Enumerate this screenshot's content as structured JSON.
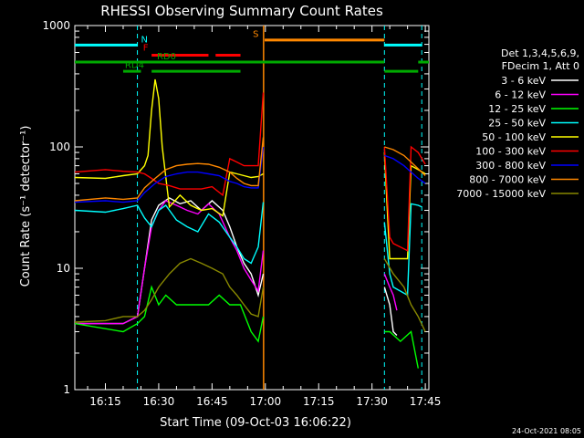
{
  "chart_data": {
    "type": "line",
    "title": "RHESSI Observing Summary Count Rates",
    "xlabel": "Start Time (09-Oct-03 16:06:22)",
    "ylabel": "Count Rate (s⁻¹ detector⁻¹)",
    "y_scale": "log",
    "ylim": [
      1,
      1000
    ],
    "xlim_minutes": [
      6.4,
      106
    ],
    "xticks": [
      {
        "m": 15,
        "label": "16:15"
      },
      {
        "m": 30,
        "label": "16:30"
      },
      {
        "m": 45,
        "label": "16:45"
      },
      {
        "m": 60,
        "label": "17:00"
      },
      {
        "m": 75,
        "label": "17:15"
      },
      {
        "m": 90,
        "label": "17:30"
      },
      {
        "m": 105,
        "label": "17:45"
      }
    ],
    "yticks": [
      {
        "v": 1,
        "label": "1"
      },
      {
        "v": 10,
        "label": "10"
      },
      {
        "v": 100,
        "label": "100"
      },
      {
        "v": 1000,
        "label": "1000"
      }
    ],
    "legend_header": [
      "Det 1,3,4,5,6,9,",
      "FDecim 1, Att 0"
    ],
    "legend_position": "right",
    "timestamp": "24-Oct-2021 08:05",
    "gaps": [
      [
        59.5,
        93.5
      ]
    ],
    "saa_cutoff": 59.8,
    "vlines_dashed": [
      24,
      93.5,
      104
    ],
    "vline_solid": 59.5,
    "flag_bars": [
      {
        "label": "N",
        "color": "#00ffff",
        "level": 690,
        "segments": [
          [
            6.4,
            24
          ],
          [
            93.5,
            104
          ]
        ],
        "label_m": 25,
        "label_v": 700
      },
      {
        "label": "F",
        "color": "#ff0000",
        "level": 570,
        "segments": [
          [
            28,
            44
          ],
          [
            46,
            53
          ]
        ],
        "label_m": 25.6,
        "label_v": 600
      },
      {
        "label": "S",
        "color": "#ff8800",
        "level": 760,
        "segments": [
          [
            59.8,
            93.5
          ]
        ],
        "label_m": 56.5,
        "label_v": 780
      },
      {
        "label": "RD0",
        "color": "#00aa00",
        "level": 500,
        "segments": [
          [
            6.4,
            93.5
          ],
          [
            103,
            106
          ]
        ],
        "label_m": 29.5,
        "label_v": 510
      },
      {
        "label": "RD4",
        "color": "#00aa00",
        "level": 420,
        "segments": [
          [
            20,
            25
          ],
          [
            28,
            53
          ],
          [
            93.5,
            103
          ]
        ],
        "label_m": 20.5,
        "label_v": 430
      }
    ],
    "series": [
      {
        "name": "3 - 6 keV",
        "color": "#ffffff",
        "pts": [
          [
            6.4,
            3.5
          ],
          [
            20,
            3.5
          ],
          [
            24,
            4
          ],
          [
            26,
            10
          ],
          [
            28,
            25
          ],
          [
            30,
            33
          ],
          [
            33,
            38
          ],
          [
            36,
            34
          ],
          [
            39,
            36
          ],
          [
            42,
            30
          ],
          [
            45,
            36
          ],
          [
            48,
            30
          ],
          [
            50,
            22
          ],
          [
            52,
            15
          ],
          [
            54,
            11
          ],
          [
            56,
            9
          ],
          [
            58,
            6
          ],
          [
            59.4,
            9
          ],
          [
            null,
            null
          ],
          [
            93.5,
            7
          ],
          [
            95,
            5
          ],
          [
            96,
            3
          ],
          [
            97,
            2.8
          ]
        ]
      },
      {
        "name": "6 - 12 keV",
        "color": "#ff00ff",
        "pts": [
          [
            6.4,
            3.5
          ],
          [
            20,
            3.5
          ],
          [
            24,
            4
          ],
          [
            26,
            10
          ],
          [
            28,
            22
          ],
          [
            30,
            30
          ],
          [
            32,
            36
          ],
          [
            35,
            33
          ],
          [
            38,
            30
          ],
          [
            41,
            28
          ],
          [
            44,
            34
          ],
          [
            47,
            28
          ],
          [
            50,
            18
          ],
          [
            52,
            14
          ],
          [
            54,
            10
          ],
          [
            56,
            8
          ],
          [
            58,
            6.5
          ],
          [
            59.4,
            14
          ],
          [
            null,
            null
          ],
          [
            93.5,
            9
          ],
          [
            95,
            7
          ],
          [
            96,
            6
          ],
          [
            97,
            4.5
          ]
        ]
      },
      {
        "name": "12 - 25 keV",
        "color": "#00ff00",
        "pts": [
          [
            6.4,
            3.5
          ],
          [
            20,
            3
          ],
          [
            24,
            3.5
          ],
          [
            26,
            4
          ],
          [
            28,
            7
          ],
          [
            30,
            5
          ],
          [
            32,
            6
          ],
          [
            35,
            5
          ],
          [
            38,
            5
          ],
          [
            41,
            5
          ],
          [
            44,
            5
          ],
          [
            47,
            6
          ],
          [
            50,
            5
          ],
          [
            53,
            5
          ],
          [
            56,
            3
          ],
          [
            58,
            2.5
          ],
          [
            59.4,
            4
          ],
          [
            null,
            null
          ],
          [
            93.5,
            3
          ],
          [
            95,
            3
          ],
          [
            98,
            2.5
          ],
          [
            101,
            3
          ],
          [
            103,
            1.5
          ]
        ]
      },
      {
        "name": "25 - 50 keV",
        "color": "#00ffff",
        "pts": [
          [
            6.4,
            30
          ],
          [
            15,
            29
          ],
          [
            20,
            31
          ],
          [
            24,
            33
          ],
          [
            26,
            26
          ],
          [
            28,
            22
          ],
          [
            30,
            30
          ],
          [
            32,
            33
          ],
          [
            35,
            25
          ],
          [
            38,
            22
          ],
          [
            41,
            20
          ],
          [
            44,
            28
          ],
          [
            47,
            24
          ],
          [
            50,
            18
          ],
          [
            52,
            15
          ],
          [
            54,
            12
          ],
          [
            56,
            11
          ],
          [
            58,
            15
          ],
          [
            59.4,
            35
          ],
          [
            null,
            null
          ],
          [
            93.5,
            24
          ],
          [
            95,
            9
          ],
          [
            96,
            7
          ],
          [
            100,
            6
          ],
          [
            101,
            34
          ],
          [
            103,
            33
          ],
          [
            104,
            32
          ]
        ]
      },
      {
        "name": "50 - 100 keV",
        "color": "#ffff00",
        "pts": [
          [
            6.4,
            56
          ],
          [
            15,
            55
          ],
          [
            20,
            58
          ],
          [
            24,
            60
          ],
          [
            26,
            70
          ],
          [
            27,
            85
          ],
          [
            28,
            200
          ],
          [
            29,
            360
          ],
          [
            30,
            250
          ],
          [
            31,
            100
          ],
          [
            33,
            32
          ],
          [
            36,
            40
          ],
          [
            39,
            33
          ],
          [
            42,
            30
          ],
          [
            45,
            31
          ],
          [
            48,
            27
          ],
          [
            50,
            62
          ],
          [
            52,
            60
          ],
          [
            54,
            58
          ],
          [
            56,
            56
          ],
          [
            58,
            57
          ],
          [
            59.4,
            60
          ],
          [
            null,
            null
          ],
          [
            93.5,
            90
          ],
          [
            95,
            12
          ],
          [
            96,
            12
          ],
          [
            100,
            12
          ],
          [
            101,
            70
          ],
          [
            103,
            65
          ],
          [
            105,
            60
          ]
        ]
      },
      {
        "name": "100 - 300 keV",
        "color": "#ff0000",
        "pts": [
          [
            6.4,
            62
          ],
          [
            15,
            65
          ],
          [
            20,
            63
          ],
          [
            24,
            62
          ],
          [
            26,
            60
          ],
          [
            28,
            55
          ],
          [
            30,
            50
          ],
          [
            33,
            48
          ],
          [
            36,
            45
          ],
          [
            39,
            45
          ],
          [
            42,
            45
          ],
          [
            45,
            47
          ],
          [
            48,
            40
          ],
          [
            50,
            80
          ],
          [
            52,
            75
          ],
          [
            54,
            70
          ],
          [
            56,
            70
          ],
          [
            58,
            70
          ],
          [
            59.4,
            280
          ],
          [
            null,
            null
          ],
          [
            93.5,
            100
          ],
          [
            95,
            18
          ],
          [
            96,
            16
          ],
          [
            100,
            14
          ],
          [
            101,
            100
          ],
          [
            103,
            90
          ],
          [
            105,
            72
          ]
        ]
      },
      {
        "name": "300 - 800 keV",
        "color": "#0000ff",
        "pts": [
          [
            6.4,
            35
          ],
          [
            15,
            36
          ],
          [
            20,
            35
          ],
          [
            24,
            36
          ],
          [
            26,
            42
          ],
          [
            29,
            50
          ],
          [
            32,
            57
          ],
          [
            35,
            60
          ],
          [
            38,
            62
          ],
          [
            41,
            62
          ],
          [
            44,
            60
          ],
          [
            47,
            58
          ],
          [
            50,
            52
          ],
          [
            52,
            50
          ],
          [
            54,
            47
          ],
          [
            56,
            46
          ],
          [
            58,
            46
          ],
          [
            59.4,
            100
          ],
          [
            null,
            null
          ],
          [
            93.5,
            85
          ],
          [
            96,
            80
          ],
          [
            99,
            70
          ],
          [
            101,
            62
          ],
          [
            103,
            55
          ],
          [
            105,
            50
          ]
        ]
      },
      {
        "name": "800 - 7000 keV",
        "color": "#ff8800",
        "pts": [
          [
            6.4,
            36
          ],
          [
            15,
            38
          ],
          [
            20,
            37
          ],
          [
            24,
            38
          ],
          [
            26,
            46
          ],
          [
            29,
            55
          ],
          [
            32,
            65
          ],
          [
            35,
            70
          ],
          [
            38,
            72
          ],
          [
            41,
            73
          ],
          [
            44,
            72
          ],
          [
            47,
            68
          ],
          [
            50,
            62
          ],
          [
            52,
            55
          ],
          [
            54,
            50
          ],
          [
            56,
            48
          ],
          [
            58,
            48
          ],
          [
            59.4,
            120
          ],
          [
            null,
            null
          ],
          [
            93.5,
            100
          ],
          [
            96,
            95
          ],
          [
            99,
            85
          ],
          [
            101,
            75
          ],
          [
            103,
            66
          ],
          [
            105,
            58
          ]
        ]
      },
      {
        "name": "7000 - 15000 keV",
        "color": "#888800",
        "pts": [
          [
            6.4,
            3.6
          ],
          [
            15,
            3.7
          ],
          [
            20,
            4
          ],
          [
            24,
            4
          ],
          [
            26,
            4.5
          ],
          [
            28,
            5.5
          ],
          [
            30,
            7
          ],
          [
            33,
            9
          ],
          [
            36,
            11
          ],
          [
            39,
            12
          ],
          [
            42,
            11
          ],
          [
            45,
            10
          ],
          [
            48,
            9
          ],
          [
            50,
            7
          ],
          [
            52,
            6
          ],
          [
            54,
            5
          ],
          [
            56,
            4.2
          ],
          [
            58,
            4
          ],
          [
            59.4,
            7
          ],
          [
            null,
            null
          ],
          [
            93.5,
            12
          ],
          [
            96,
            9
          ],
          [
            99,
            7
          ],
          [
            101,
            5
          ],
          [
            103,
            4
          ],
          [
            105,
            3
          ]
        ]
      }
    ]
  }
}
